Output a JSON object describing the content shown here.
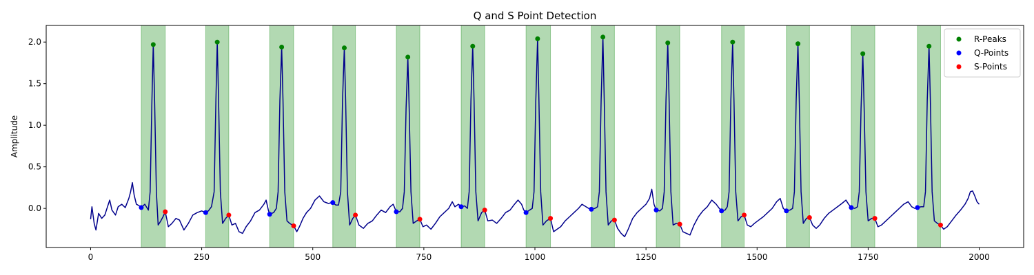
{
  "chart_data": {
    "type": "line",
    "title": "Q and S Point Detection",
    "xlabel": "",
    "ylabel": "Amplitude",
    "xlim": [
      -100,
      2100
    ],
    "ylim": [
      -0.47,
      2.2
    ],
    "xticks": [
      0,
      250,
      500,
      750,
      1000,
      1250,
      1500,
      1750,
      2000
    ],
    "yticks": [
      0.0,
      0.5,
      1.0,
      1.5,
      2.0
    ],
    "ytick_labels": [
      "0.0",
      "0.5",
      "1.0",
      "1.5",
      "2.0"
    ],
    "grid": false,
    "legend_position": "top-right",
    "line_color": "#00008b",
    "shade_color": "#008000",
    "r_peaks": {
      "name": "R-Peaks",
      "color": "#008000",
      "x": [
        141,
        285,
        430,
        571,
        714,
        860,
        1006,
        1153,
        1299,
        1445,
        1592,
        1738,
        1887
      ],
      "y": [
        1.97,
        2.0,
        1.94,
        1.93,
        1.82,
        1.95,
        2.04,
        2.06,
        1.99,
        2.0,
        1.98,
        1.86,
        1.95
      ]
    },
    "q_points": {
      "name": "Q-Points",
      "color": "#0000ff",
      "x": [
        114,
        259,
        403,
        545,
        688,
        834,
        980,
        1127,
        1273,
        1420,
        1566,
        1712,
        1861
      ],
      "y": [
        0.01,
        -0.05,
        -0.07,
        0.07,
        -0.04,
        0.02,
        -0.05,
        -0.01,
        -0.02,
        -0.03,
        -0.03,
        0.01,
        0.01
      ]
    },
    "s_points": {
      "name": "S-Points",
      "color": "#ff0000",
      "x": [
        168,
        311,
        457,
        596,
        741,
        887,
        1035,
        1179,
        1326,
        1471,
        1618,
        1765,
        1913
      ],
      "y": [
        -0.04,
        -0.08,
        -0.21,
        -0.08,
        -0.13,
        -0.02,
        -0.12,
        -0.14,
        -0.19,
        -0.08,
        -0.11,
        -0.12,
        -0.2
      ]
    },
    "qrs_regions": [
      [
        114,
        168
      ],
      [
        259,
        311
      ],
      [
        403,
        457
      ],
      [
        545,
        596
      ],
      [
        688,
        741
      ],
      [
        834,
        887
      ],
      [
        980,
        1035
      ],
      [
        1127,
        1179
      ],
      [
        1273,
        1326
      ],
      [
        1420,
        1471
      ],
      [
        1566,
        1618
      ],
      [
        1712,
        1765
      ],
      [
        1861,
        1913
      ]
    ],
    "signal_anchors": [
      [
        0,
        -0.13
      ],
      [
        3,
        0.02
      ],
      [
        8,
        -0.18
      ],
      [
        12,
        -0.26
      ],
      [
        18,
        -0.06
      ],
      [
        25,
        -0.12
      ],
      [
        32,
        -0.08
      ],
      [
        38,
        0.02
      ],
      [
        43,
        0.1
      ],
      [
        48,
        -0.02
      ],
      [
        56,
        -0.08
      ],
      [
        62,
        0.02
      ],
      [
        70,
        0.05
      ],
      [
        78,
        0.01
      ],
      [
        86,
        0.12
      ],
      [
        90,
        0.2
      ],
      [
        94,
        0.31
      ],
      [
        98,
        0.16
      ],
      [
        103,
        0.05
      ],
      [
        110,
        0.03
      ],
      [
        114,
        0.01
      ],
      [
        122,
        0.05
      ],
      [
        130,
        -0.02
      ],
      [
        134,
        0.2
      ],
      [
        138,
        1.3
      ],
      [
        141,
        1.97
      ],
      [
        144,
        1.3
      ],
      [
        148,
        0.2
      ],
      [
        152,
        -0.2
      ],
      [
        158,
        -0.15
      ],
      [
        163,
        -0.1
      ],
      [
        168,
        -0.04
      ],
      [
        175,
        -0.22
      ],
      [
        183,
        -0.18
      ],
      [
        192,
        -0.12
      ],
      [
        200,
        -0.14
      ],
      [
        210,
        -0.26
      ],
      [
        220,
        -0.18
      ],
      [
        230,
        -0.08
      ],
      [
        240,
        -0.05
      ],
      [
        250,
        -0.03
      ],
      [
        259,
        -0.05
      ],
      [
        265,
        -0.03
      ],
      [
        272,
        0.02
      ],
      [
        278,
        0.2
      ],
      [
        282,
        1.3
      ],
      [
        285,
        2.0
      ],
      [
        288,
        1.3
      ],
      [
        292,
        0.2
      ],
      [
        297,
        -0.18
      ],
      [
        304,
        -0.12
      ],
      [
        311,
        -0.08
      ],
      [
        318,
        -0.2
      ],
      [
        326,
        -0.18
      ],
      [
        334,
        -0.28
      ],
      [
        342,
        -0.3
      ],
      [
        350,
        -0.22
      ],
      [
        360,
        -0.15
      ],
      [
        370,
        -0.05
      ],
      [
        380,
        -0.02
      ],
      [
        390,
        0.05
      ],
      [
        395,
        0.1
      ],
      [
        400,
        -0.02
      ],
      [
        403,
        -0.07
      ],
      [
        412,
        -0.05
      ],
      [
        418,
        0.0
      ],
      [
        422,
        0.2
      ],
      [
        426,
        1.3
      ],
      [
        430,
        1.94
      ],
      [
        433,
        1.3
      ],
      [
        437,
        0.2
      ],
      [
        442,
        -0.15
      ],
      [
        448,
        -0.18
      ],
      [
        457,
        -0.21
      ],
      [
        464,
        -0.28
      ],
      [
        470,
        -0.22
      ],
      [
        478,
        -0.12
      ],
      [
        486,
        -0.05
      ],
      [
        495,
        0.0
      ],
      [
        505,
        0.1
      ],
      [
        515,
        0.15
      ],
      [
        525,
        0.08
      ],
      [
        535,
        0.06
      ],
      [
        545,
        0.07
      ],
      [
        552,
        0.04
      ],
      [
        558,
        0.04
      ],
      [
        563,
        0.2
      ],
      [
        567,
        1.3
      ],
      [
        571,
        1.93
      ],
      [
        574,
        1.3
      ],
      [
        578,
        0.2
      ],
      [
        583,
        -0.2
      ],
      [
        590,
        -0.12
      ],
      [
        596,
        -0.08
      ],
      [
        604,
        -0.2
      ],
      [
        614,
        -0.24
      ],
      [
        624,
        -0.18
      ],
      [
        634,
        -0.15
      ],
      [
        644,
        -0.08
      ],
      [
        654,
        -0.02
      ],
      [
        664,
        -0.05
      ],
      [
        674,
        0.02
      ],
      [
        681,
        0.05
      ],
      [
        688,
        -0.04
      ],
      [
        696,
        -0.04
      ],
      [
        702,
        0.0
      ],
      [
        706,
        0.2
      ],
      [
        710,
        1.2
      ],
      [
        714,
        1.82
      ],
      [
        717,
        1.2
      ],
      [
        721,
        0.2
      ],
      [
        726,
        -0.18
      ],
      [
        734,
        -0.15
      ],
      [
        741,
        -0.13
      ],
      [
        748,
        -0.22
      ],
      [
        756,
        -0.2
      ],
      [
        766,
        -0.25
      ],
      [
        776,
        -0.18
      ],
      [
        786,
        -0.1
      ],
      [
        796,
        -0.05
      ],
      [
        806,
        0.0
      ],
      [
        814,
        0.08
      ],
      [
        820,
        0.02
      ],
      [
        828,
        0.05
      ],
      [
        834,
        0.02
      ],
      [
        842,
        0.03
      ],
      [
        848,
        0.0
      ],
      [
        852,
        0.2
      ],
      [
        856,
        1.3
      ],
      [
        860,
        1.95
      ],
      [
        863,
        1.3
      ],
      [
        867,
        0.2
      ],
      [
        872,
        -0.15
      ],
      [
        880,
        -0.05
      ],
      [
        887,
        -0.02
      ],
      [
        894,
        -0.15
      ],
      [
        904,
        -0.14
      ],
      [
        914,
        -0.18
      ],
      [
        924,
        -0.12
      ],
      [
        934,
        -0.05
      ],
      [
        944,
        -0.02
      ],
      [
        954,
        0.05
      ],
      [
        962,
        0.1
      ],
      [
        970,
        0.05
      ],
      [
        975,
        -0.02
      ],
      [
        980,
        -0.05
      ],
      [
        988,
        -0.02
      ],
      [
        994,
        0.0
      ],
      [
        998,
        0.2
      ],
      [
        1002,
        1.3
      ],
      [
        1006,
        2.04
      ],
      [
        1009,
        1.3
      ],
      [
        1013,
        0.2
      ],
      [
        1018,
        -0.2
      ],
      [
        1026,
        -0.15
      ],
      [
        1035,
        -0.12
      ],
      [
        1042,
        -0.28
      ],
      [
        1050,
        -0.25
      ],
      [
        1058,
        -0.22
      ],
      [
        1068,
        -0.15
      ],
      [
        1078,
        -0.1
      ],
      [
        1088,
        -0.05
      ],
      [
        1098,
        0.0
      ],
      [
        1106,
        0.05
      ],
      [
        1115,
        0.02
      ],
      [
        1121,
        0.0
      ],
      [
        1127,
        -0.01
      ],
      [
        1135,
        0.0
      ],
      [
        1141,
        0.02
      ],
      [
        1145,
        0.2
      ],
      [
        1149,
        1.3
      ],
      [
        1153,
        2.06
      ],
      [
        1156,
        1.3
      ],
      [
        1160,
        0.2
      ],
      [
        1165,
        -0.2
      ],
      [
        1172,
        -0.15
      ],
      [
        1179,
        -0.14
      ],
      [
        1186,
        -0.24
      ],
      [
        1194,
        -0.3
      ],
      [
        1202,
        -0.34
      ],
      [
        1210,
        -0.25
      ],
      [
        1220,
        -0.12
      ],
      [
        1230,
        -0.05
      ],
      [
        1240,
        0.0
      ],
      [
        1250,
        0.05
      ],
      [
        1258,
        0.12
      ],
      [
        1263,
        0.23
      ],
      [
        1268,
        0.05
      ],
      [
        1273,
        -0.02
      ],
      [
        1281,
        -0.03
      ],
      [
        1287,
        0.0
      ],
      [
        1291,
        0.2
      ],
      [
        1295,
        1.3
      ],
      [
        1299,
        1.99
      ],
      [
        1302,
        1.3
      ],
      [
        1306,
        0.2
      ],
      [
        1311,
        -0.2
      ],
      [
        1318,
        -0.18
      ],
      [
        1326,
        -0.19
      ],
      [
        1333,
        -0.28
      ],
      [
        1341,
        -0.3
      ],
      [
        1349,
        -0.32
      ],
      [
        1358,
        -0.2
      ],
      [
        1368,
        -0.1
      ],
      [
        1378,
        -0.03
      ],
      [
        1388,
        0.02
      ],
      [
        1398,
        0.1
      ],
      [
        1408,
        0.05
      ],
      [
        1415,
        0.0
      ],
      [
        1420,
        -0.03
      ],
      [
        1428,
        -0.02
      ],
      [
        1433,
        0.02
      ],
      [
        1437,
        0.2
      ],
      [
        1441,
        1.3
      ],
      [
        1445,
        2.0
      ],
      [
        1448,
        1.3
      ],
      [
        1452,
        0.2
      ],
      [
        1457,
        -0.15
      ],
      [
        1464,
        -0.1
      ],
      [
        1471,
        -0.08
      ],
      [
        1478,
        -0.2
      ],
      [
        1486,
        -0.22
      ],
      [
        1494,
        -0.18
      ],
      [
        1504,
        -0.14
      ],
      [
        1514,
        -0.1
      ],
      [
        1524,
        -0.05
      ],
      [
        1534,
        0.0
      ],
      [
        1544,
        0.08
      ],
      [
        1552,
        0.12
      ],
      [
        1559,
        0.0
      ],
      [
        1566,
        -0.03
      ],
      [
        1574,
        -0.02
      ],
      [
        1580,
        0.0
      ],
      [
        1584,
        0.2
      ],
      [
        1588,
        1.3
      ],
      [
        1592,
        1.98
      ],
      [
        1595,
        1.3
      ],
      [
        1599,
        0.2
      ],
      [
        1604,
        -0.18
      ],
      [
        1611,
        -0.12
      ],
      [
        1618,
        -0.11
      ],
      [
        1625,
        -0.2
      ],
      [
        1633,
        -0.24
      ],
      [
        1641,
        -0.2
      ],
      [
        1651,
        -0.12
      ],
      [
        1661,
        -0.06
      ],
      [
        1671,
        -0.02
      ],
      [
        1681,
        0.02
      ],
      [
        1691,
        0.06
      ],
      [
        1700,
        0.1
      ],
      [
        1706,
        0.05
      ],
      [
        1712,
        0.01
      ],
      [
        1720,
        0.0
      ],
      [
        1726,
        0.02
      ],
      [
        1730,
        0.2
      ],
      [
        1734,
        1.2
      ],
      [
        1738,
        1.86
      ],
      [
        1741,
        1.2
      ],
      [
        1745,
        0.2
      ],
      [
        1750,
        -0.15
      ],
      [
        1758,
        -0.12
      ],
      [
        1765,
        -0.12
      ],
      [
        1772,
        -0.22
      ],
      [
        1780,
        -0.2
      ],
      [
        1790,
        -0.15
      ],
      [
        1800,
        -0.1
      ],
      [
        1810,
        -0.05
      ],
      [
        1820,
        0.0
      ],
      [
        1830,
        0.05
      ],
      [
        1840,
        0.08
      ],
      [
        1848,
        0.02
      ],
      [
        1855,
        0.0
      ],
      [
        1861,
        0.01
      ],
      [
        1869,
        0.02
      ],
      [
        1875,
        0.02
      ],
      [
        1879,
        0.2
      ],
      [
        1883,
        1.3
      ],
      [
        1887,
        1.95
      ],
      [
        1890,
        1.3
      ],
      [
        1894,
        0.2
      ],
      [
        1899,
        -0.15
      ],
      [
        1906,
        -0.18
      ],
      [
        1913,
        -0.2
      ],
      [
        1920,
        -0.25
      ],
      [
        1928,
        -0.22
      ],
      [
        1938,
        -0.15
      ],
      [
        1948,
        -0.08
      ],
      [
        1958,
        -0.02
      ],
      [
        1968,
        0.05
      ],
      [
        1975,
        0.12
      ],
      [
        1980,
        0.2
      ],
      [
        1985,
        0.21
      ],
      [
        1990,
        0.15
      ],
      [
        1995,
        0.08
      ],
      [
        2000,
        0.05
      ]
    ]
  }
}
